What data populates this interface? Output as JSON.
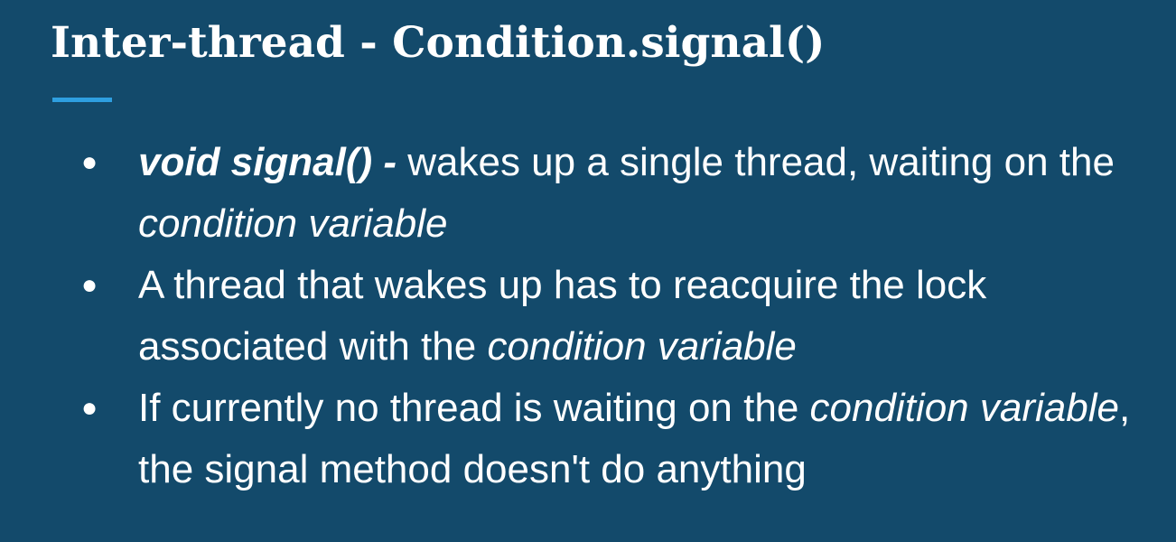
{
  "slide": {
    "title": "Inter-thread - Condition.signal()",
    "bullet_symbol": "●",
    "bullets": [
      {
        "method": "void signal() -",
        "text1": " wakes up a single thread, waiting on the ",
        "term": "condition variable"
      },
      {
        "text1": "A thread that wakes up has to reacquire the lock associated with the ",
        "term": "condition variable"
      },
      {
        "text1": "If currently no thread is waiting on the ",
        "term": "condition variable",
        "text2": ", the signal method doesn't do anything"
      }
    ]
  },
  "colors": {
    "background": "#134a6b",
    "text": "#ffffff",
    "accent": "#2e9fe0"
  }
}
